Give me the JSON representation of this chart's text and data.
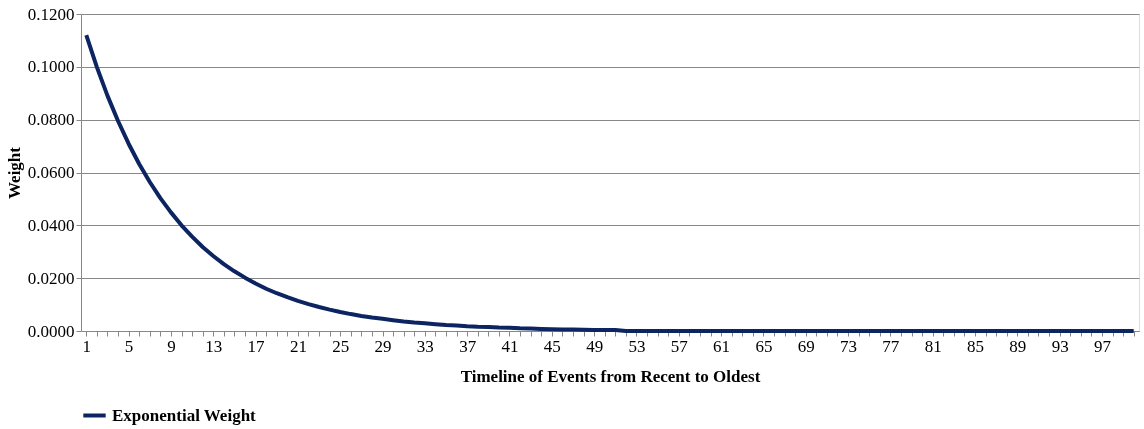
{
  "chart_data": {
    "type": "line",
    "xlabel": "Timeline of  Events from Recent to Oldest",
    "ylabel": "Weight",
    "categories": [
      "1",
      null,
      null,
      null,
      "5",
      null,
      null,
      null,
      "9",
      null,
      null,
      null,
      "13",
      null,
      null,
      null,
      "17",
      null,
      null,
      null,
      "21",
      null,
      null,
      null,
      "25",
      null,
      null,
      null,
      "29",
      null,
      null,
      null,
      "33",
      null,
      null,
      null,
      "37",
      null,
      null,
      null,
      "41",
      null,
      null,
      null,
      "45",
      null,
      null,
      null,
      "49",
      null,
      null,
      null,
      "53",
      null,
      null,
      null,
      "57",
      null,
      null,
      null,
      "61",
      null,
      null,
      null,
      "65",
      null,
      null,
      null,
      "69",
      null,
      null,
      null,
      "73",
      null,
      null,
      null,
      "77",
      null,
      null,
      null,
      "81",
      null,
      null,
      null,
      "85",
      null,
      null,
      null,
      "89",
      null,
      null,
      null,
      "93",
      null,
      null,
      null,
      "97",
      null,
      null,
      null
    ],
    "series": [
      {
        "name": "Exponential Weight",
        "color": "#0c2461",
        "values": [
          0.112,
          0.0999,
          0.0891,
          0.0795,
          0.0709,
          0.0632,
          0.0564,
          0.0503,
          0.0449,
          0.04,
          0.0357,
          0.0318,
          0.0284,
          0.0253,
          0.0226,
          0.0202,
          0.018,
          0.016,
          0.0143,
          0.0128,
          0.0114,
          0.0102,
          0.0091,
          0.0081,
          0.0072,
          0.0064,
          0.0057,
          0.0051,
          0.0046,
          0.0041,
          0.0036,
          0.0032,
          0.0029,
          0.0026,
          0.0023,
          0.0021,
          0.0018,
          0.0016,
          0.0015,
          0.0013,
          0.0012,
          0.001,
          0.0009,
          0.0008,
          0.0007,
          0.0006,
          0.0006,
          0.0005,
          0.0004,
          0.0004,
          0.0004,
          0,
          0,
          0,
          0,
          0,
          0,
          0,
          0,
          0,
          0,
          0,
          0,
          0,
          0,
          0,
          0,
          0,
          0,
          0,
          0,
          0,
          0,
          0,
          0,
          0,
          0,
          0,
          0,
          0,
          0,
          0,
          0,
          0,
          0,
          0,
          0,
          0,
          0,
          0,
          0,
          0,
          0,
          0,
          0,
          0,
          0,
          0,
          0,
          0
        ]
      }
    ],
    "ylim": [
      0,
      0.12
    ],
    "yticks": [
      {
        "value": 0,
        "label": "0.0000"
      },
      {
        "value": 0.02,
        "label": "0.0200"
      },
      {
        "value": 0.04,
        "label": "0.0400"
      },
      {
        "value": 0.06,
        "label": "0.0600"
      },
      {
        "value": 0.08,
        "label": "0.0800"
      },
      {
        "value": 0.1,
        "label": "0.1000"
      },
      {
        "value": 0.12,
        "label": "0.1200"
      }
    ],
    "grid": "y",
    "legend": "bottom",
    "marker": "none",
    "line_style": "solid"
  }
}
